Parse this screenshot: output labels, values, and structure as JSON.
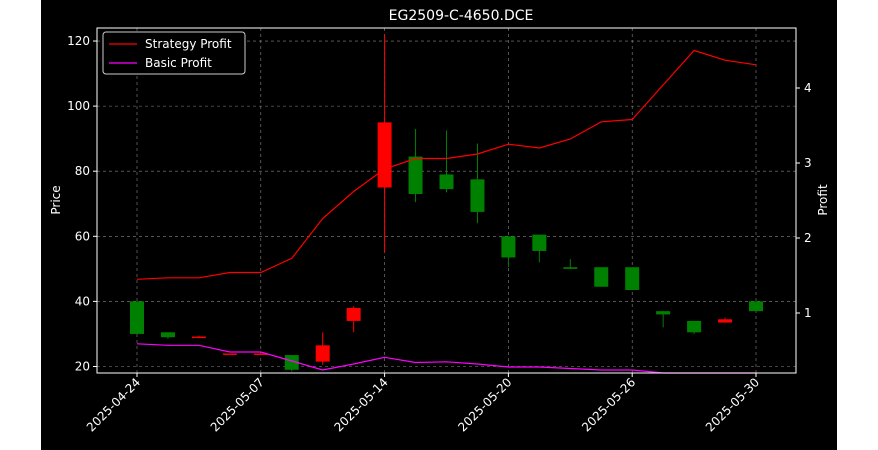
{
  "chart_data": {
    "type": "candlestick+line",
    "title": "EG2509-C-4650.DCE",
    "ylabel_left": "Price",
    "ylabel_right": "Profit",
    "ylim_left": [
      18,
      124
    ],
    "ylim_right": [
      0.2,
      4.8
    ],
    "yticks_left": [
      20,
      40,
      60,
      80,
      100,
      120
    ],
    "yticks_right": [
      1,
      2,
      3,
      4
    ],
    "grid": true,
    "legend_position": "top-left",
    "x_tick_labels": [
      "2025-04-24",
      "2025-05-07",
      "2025-05-14",
      "2025-05-20",
      "2025-05-26",
      "2025-05-30"
    ],
    "x_tick_index": [
      0,
      4,
      8,
      12,
      16,
      20
    ],
    "colors": {
      "up": "#ff0000",
      "down": "#008000",
      "strategy": "#ff0000",
      "basic": "#ff00ff",
      "grid": "#888888"
    },
    "candles": [
      {
        "o": 40,
        "h": 40,
        "l": 30,
        "c": 30
      },
      {
        "o": 30.5,
        "h": 30.5,
        "l": 28.5,
        "c": 29
      },
      {
        "o": 29,
        "h": 29.5,
        "l": 29,
        "c": 29.2
      },
      {
        "o": 24,
        "h": 24,
        "l": 24,
        "c": 24
      },
      {
        "o": 24,
        "h": 24,
        "l": 24,
        "c": 24
      },
      {
        "o": 23.5,
        "h": 23.5,
        "l": 18.5,
        "c": 19
      },
      {
        "o": 21.5,
        "h": 30.5,
        "l": 20.5,
        "c": 26.5
      },
      {
        "o": 34,
        "h": 38.5,
        "l": 30.5,
        "c": 38
      },
      {
        "o": 75,
        "h": 122,
        "l": 55,
        "c": 95
      },
      {
        "o": 84.5,
        "h": 93,
        "l": 70.5,
        "c": 73
      },
      {
        "o": 79,
        "h": 92.5,
        "l": 73.5,
        "c": 74.5
      },
      {
        "o": 77.5,
        "h": 88.5,
        "l": 64,
        "c": 67.5
      },
      {
        "o": 60,
        "h": 60,
        "l": 50.5,
        "c": 53.5
      },
      {
        "o": 60.5,
        "h": 60.5,
        "l": 52,
        "c": 55.5
      },
      {
        "o": 50.5,
        "h": 53,
        "l": 50,
        "c": 50
      },
      {
        "o": 50.5,
        "h": 50.5,
        "l": 44.5,
        "c": 44.5
      },
      {
        "o": 50.5,
        "h": 50.5,
        "l": 43.5,
        "c": 43.5
      },
      {
        "o": 37,
        "h": 37,
        "l": 32,
        "c": 36
      },
      {
        "o": 34,
        "h": 34,
        "l": 30,
        "c": 30.5
      },
      {
        "o": 33.5,
        "h": 35,
        "l": 33.5,
        "c": 34.5
      },
      {
        "o": 40,
        "h": 40,
        "l": 37,
        "c": 37
      }
    ],
    "series": [
      {
        "name": "Strategy Profit",
        "axis": "right",
        "values": [
          1.45,
          1.47,
          1.47,
          1.54,
          1.54,
          1.73,
          2.26,
          2.62,
          2.92,
          3.06,
          3.06,
          3.12,
          3.25,
          3.2,
          3.32,
          3.55,
          3.58,
          4.04,
          4.5,
          4.37,
          4.31
        ]
      },
      {
        "name": "Basic Profit",
        "axis": "right",
        "values": [
          0.59,
          0.57,
          0.57,
          0.48,
          0.48,
          0.36,
          0.24,
          0.32,
          0.41,
          0.34,
          0.35,
          0.32,
          0.28,
          0.28,
          0.26,
          0.24,
          0.24,
          0.2,
          0.2,
          0.2,
          0.2
        ]
      }
    ]
  }
}
